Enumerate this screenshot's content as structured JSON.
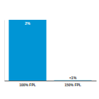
{
  "chart_data": {
    "type": "bar",
    "categories": [
      "100% FPL",
      "150% FPL"
    ],
    "values": [
      2,
      0.01
    ],
    "value_labels": [
      "2%",
      "<1%"
    ],
    "data_labels": true,
    "color": "#0095d5",
    "ylim": [
      0,
      2
    ],
    "tick_labels": "x",
    "grid": false
  }
}
